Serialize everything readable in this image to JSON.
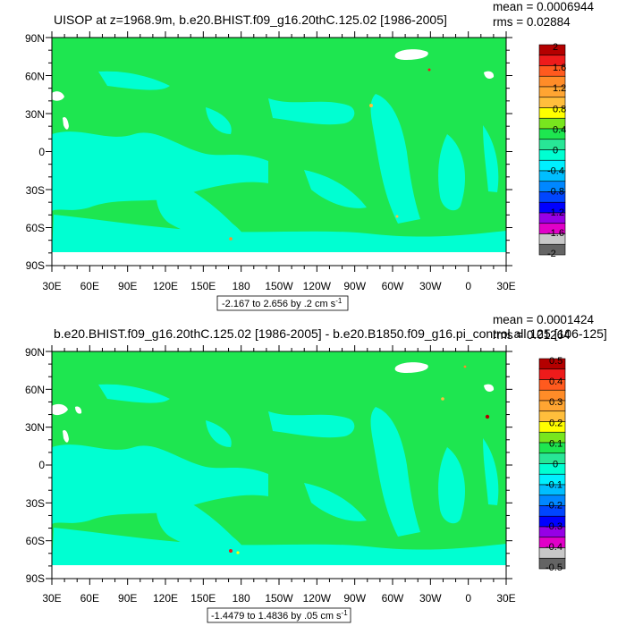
{
  "panels": [
    {
      "title": "UISOP at z=1968.9m, b.e20.BHIST.f09_g16.20thC.125.02 [1986-2005]",
      "stats": {
        "mean": "mean = 0.0006944",
        "rms": "rms = 0.02884"
      },
      "range_label": "-2.167 to 2.656 by .2 cm s",
      "range_sup": "-1",
      "colorbar": {
        "labels": [
          "2",
          "1.6",
          "1.2",
          "0.8",
          "0.4",
          "0",
          "-0.4",
          "-0.8",
          "-1.2",
          "-1.6",
          "-2"
        ],
        "colors": [
          "#b40000",
          "#ee1b1b",
          "#ff5a1e",
          "#ff8c28",
          "#ffa532",
          "#ffbe3c",
          "#ffff00",
          "#78e61e",
          "#1ee650",
          "#28e696",
          "#00ffd2",
          "#00f0ff",
          "#00beff",
          "#0087ff",
          "#0046ff",
          "#0000ff",
          "#9600e6",
          "#e100c8",
          "#c8c8c8",
          "#646464"
        ]
      }
    },
    {
      "title": "b.e20.BHIST.f09_g16.20thC.125.02 [1986-2005] - b.e20.B1850.f09_g16.pi_control.all.125 [106-125]",
      "stats": {
        "mean": "mean = 0.0001424",
        "rms": "rms = 0.01264"
      },
      "range_label": "-1.4479 to 1.4836 by .05 cm s",
      "range_sup": "-1",
      "colorbar": {
        "labels": [
          "0.5",
          "0.4",
          "0.3",
          "0.2",
          "0.1",
          "0",
          "-0.1",
          "-0.2",
          "-0.3",
          "-0.4",
          "-0.5"
        ],
        "colors": [
          "#b40000",
          "#ee1b1b",
          "#ff5a1e",
          "#ff8c28",
          "#ffa532",
          "#ffbe3c",
          "#ffff00",
          "#78e61e",
          "#1ee650",
          "#28e696",
          "#00ffd2",
          "#00f0ff",
          "#00beff",
          "#0087ff",
          "#0046ff",
          "#0000ff",
          "#9600e6",
          "#e100c8",
          "#c8c8c8",
          "#646464"
        ]
      }
    }
  ],
  "axes": {
    "lat_labels": [
      "90N",
      "60N",
      "30N",
      "0",
      "30S",
      "60S",
      "90S"
    ],
    "lon_labels": [
      "30E",
      "60E",
      "90E",
      "120E",
      "150E",
      "180",
      "150W",
      "120W",
      "90W",
      "60W",
      "30W",
      "0",
      "30E"
    ]
  },
  "colors": {
    "land": "#1ee650",
    "ocean_light": "#00ffd2",
    "missing": "#ffffff"
  }
}
